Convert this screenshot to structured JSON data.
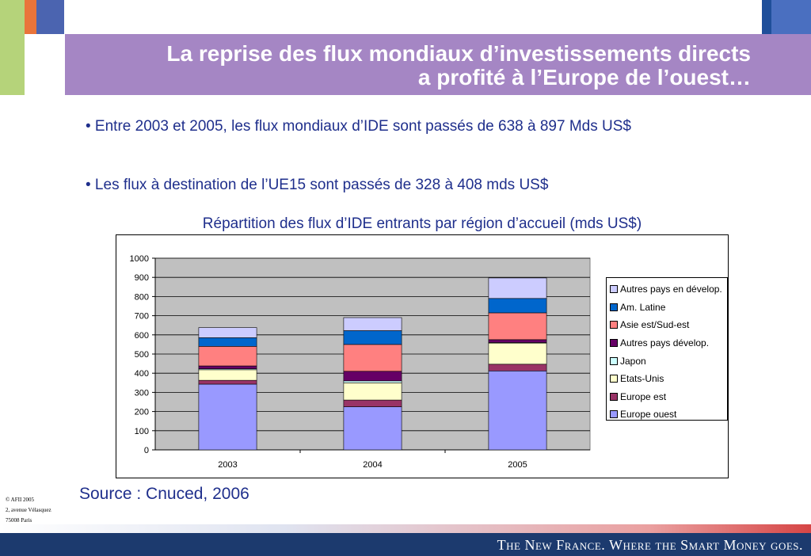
{
  "slide": {
    "title_line1": "La reprise des flux mondiaux d’investissements directs",
    "title_line2": "a profité à l’Europe de l’ouest…",
    "bullet1": "• Entre 2003 et 2005, les flux mondiaux d’IDE sont passés de 638 à 897 Mds US$",
    "bullet2": "• Les flux à destination de l’UE15 sont passés de 328 à 408 mds US$",
    "source": "Source : Cnuced, 2006",
    "footer_address": [
      "© AFII 2005",
      "2, avenue Vélasquez",
      "75008 Paris"
    ],
    "tagline": "The New France. Where the Smart Money goes."
  },
  "chart_data": {
    "type": "bar",
    "stacked": true,
    "title": "Répartition des flux d’IDE entrants par région d’accueil (mds US$)",
    "categories": [
      "2003",
      "2004",
      "2005"
    ],
    "ylim": [
      0,
      1000
    ],
    "yticks": [
      0,
      100,
      200,
      300,
      400,
      500,
      600,
      700,
      800,
      900,
      1000
    ],
    "grid": true,
    "legend_position": "right",
    "series": [
      {
        "name": "Europe ouest",
        "color": "#9999ff",
        "values": [
          343,
          225,
          412
        ]
      },
      {
        "name": "Europe est",
        "color": "#993366",
        "values": [
          20,
          35,
          35
        ]
      },
      {
        "name": "Etats-Unis",
        "color": "#ffffcc",
        "values": [
          55,
          90,
          110
        ]
      },
      {
        "name": "Japon",
        "color": "#ccffff",
        "values": [
          5,
          10,
          3
        ]
      },
      {
        "name": "Autres pays dévelop.",
        "color": "#660066",
        "values": [
          15,
          50,
          15
        ]
      },
      {
        "name": "Asie est/Sud-est",
        "color": "#ff8080",
        "values": [
          102,
          140,
          140
        ]
      },
      {
        "name": "Am. Latine",
        "color": "#0066cc",
        "values": [
          45,
          72,
          75
        ]
      },
      {
        "name": "Autres pays en dévelop.",
        "color": "#ccccff",
        "values": [
          53,
          68,
          107
        ]
      }
    ]
  }
}
